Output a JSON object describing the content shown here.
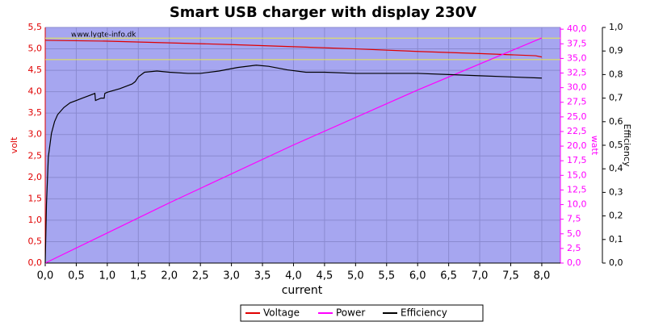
{
  "chart_data": {
    "type": "line",
    "title": "Smart USB charger with display 230V",
    "watermark": "www.lygte-info.dk",
    "x_label": "current",
    "y_label": "volt",
    "y2_label": "watt",
    "y3_label": "Efficiency",
    "xlim": [
      0,
      8.3
    ],
    "ylim": [
      0,
      5.5
    ],
    "y2lim": [
      0,
      40.3
    ],
    "y3lim": [
      0,
      1
    ],
    "grid": true,
    "legend": "bottom",
    "reference_lines": {
      "color": "#e8e84a",
      "values": [
        5.25,
        4.75
      ]
    },
    "xticks": [
      {
        "value": 0,
        "label": "0,0"
      },
      {
        "value": 0.5,
        "label": "0,5"
      },
      {
        "value": 1,
        "label": "1,0"
      },
      {
        "value": 1.5,
        "label": "1,5"
      },
      {
        "value": 2,
        "label": "2,0"
      },
      {
        "value": 2.5,
        "label": "2,5"
      },
      {
        "value": 3,
        "label": "3,0"
      },
      {
        "value": 3.5,
        "label": "3,5"
      },
      {
        "value": 4,
        "label": "4,0"
      },
      {
        "value": 4.5,
        "label": "4,5"
      },
      {
        "value": 5,
        "label": "5,0"
      },
      {
        "value": 5.5,
        "label": "5,5"
      },
      {
        "value": 6,
        "label": "6,0"
      },
      {
        "value": 6.5,
        "label": "6,5"
      },
      {
        "value": 7,
        "label": "7,0"
      },
      {
        "value": 7.5,
        "label": "7,5"
      },
      {
        "value": 8,
        "label": "8,0"
      }
    ],
    "yticks": [
      {
        "value": 0,
        "label": "0,0"
      },
      {
        "value": 0.5,
        "label": "0,5"
      },
      {
        "value": 1,
        "label": "1,0"
      },
      {
        "value": 1.5,
        "label": "1,5"
      },
      {
        "value": 2,
        "label": "2,0"
      },
      {
        "value": 2.5,
        "label": "2,5"
      },
      {
        "value": 3,
        "label": "3,0"
      },
      {
        "value": 3.5,
        "label": "3,5"
      },
      {
        "value": 4,
        "label": "4,0"
      },
      {
        "value": 4.5,
        "label": "4,5"
      },
      {
        "value": 5,
        "label": "5,0"
      },
      {
        "value": 5.5,
        "label": "5,5"
      }
    ],
    "y2ticks": [
      {
        "value": 0,
        "label": "0,0"
      },
      {
        "value": 2.5,
        "label": "2,5"
      },
      {
        "value": 5,
        "label": "5,0"
      },
      {
        "value": 7.5,
        "label": "7,5"
      },
      {
        "value": 10,
        "label": "10,0"
      },
      {
        "value": 12.5,
        "label": "12,5"
      },
      {
        "value": 15,
        "label": "15,0"
      },
      {
        "value": 17.5,
        "label": "17,5"
      },
      {
        "value": 20,
        "label": "20,0"
      },
      {
        "value": 22.5,
        "label": "22,5"
      },
      {
        "value": 25,
        "label": "25,0"
      },
      {
        "value": 27.5,
        "label": "27,5"
      },
      {
        "value": 30,
        "label": "30,0"
      },
      {
        "value": 32.5,
        "label": "32,5"
      },
      {
        "value": 35,
        "label": "35,0"
      },
      {
        "value": 37.5,
        "label": "37,5"
      },
      {
        "value": 40,
        "label": "40,0"
      }
    ],
    "y3ticks": [
      {
        "value": 0,
        "label": "0,0"
      },
      {
        "value": 0.1,
        "label": "0,1"
      },
      {
        "value": 0.2,
        "label": "0,2"
      },
      {
        "value": 0.3,
        "label": "0,3"
      },
      {
        "value": 0.4,
        "label": "0,4"
      },
      {
        "value": 0.5,
        "label": "0,5"
      },
      {
        "value": 0.6,
        "label": "0,6"
      },
      {
        "value": 0.7,
        "label": "0,7"
      },
      {
        "value": 0.8,
        "label": "0,8"
      },
      {
        "value": 0.9,
        "label": "0,9"
      },
      {
        "value": 1,
        "label": "1,0"
      }
    ],
    "series": [
      {
        "name": "Voltage",
        "color": "#e00000",
        "axis": "y",
        "x": [
          0,
          1,
          2,
          3,
          4,
          5,
          6,
          7,
          7.9,
          8.0
        ],
        "values": [
          5.2,
          5.18,
          5.14,
          5.1,
          5.05,
          5.0,
          4.94,
          4.89,
          4.84,
          4.81
        ]
      },
      {
        "name": "Power",
        "color": "#ff00ff",
        "axis": "y2",
        "x": [
          0,
          2,
          4,
          6,
          8
        ],
        "values": [
          0,
          10.3,
          20.2,
          29.6,
          38.5
        ]
      },
      {
        "name": "Efficiency",
        "color": "#000000",
        "axis": "y3",
        "x": [
          0,
          0.02,
          0.05,
          0.1,
          0.15,
          0.2,
          0.3,
          0.4,
          0.5,
          0.6,
          0.7,
          0.8,
          0.81,
          0.9,
          0.95,
          0.96,
          1.0,
          1.2,
          1.4,
          1.45,
          1.5,
          1.6,
          1.8,
          2.0,
          2.3,
          2.5,
          2.8,
          3.1,
          3.4,
          3.6,
          3.9,
          4.2,
          4.5,
          5.0,
          5.5,
          6.0,
          6.5,
          7.0,
          7.5,
          8.0
        ],
        "values": [
          0,
          0.25,
          0.45,
          0.55,
          0.6,
          0.63,
          0.66,
          0.68,
          0.69,
          0.7,
          0.71,
          0.72,
          0.69,
          0.7,
          0.7,
          0.72,
          0.725,
          0.74,
          0.76,
          0.77,
          0.79,
          0.81,
          0.815,
          0.81,
          0.805,
          0.805,
          0.815,
          0.83,
          0.84,
          0.835,
          0.82,
          0.81,
          0.81,
          0.805,
          0.805,
          0.805,
          0.8,
          0.795,
          0.79,
          0.785
        ]
      }
    ]
  }
}
